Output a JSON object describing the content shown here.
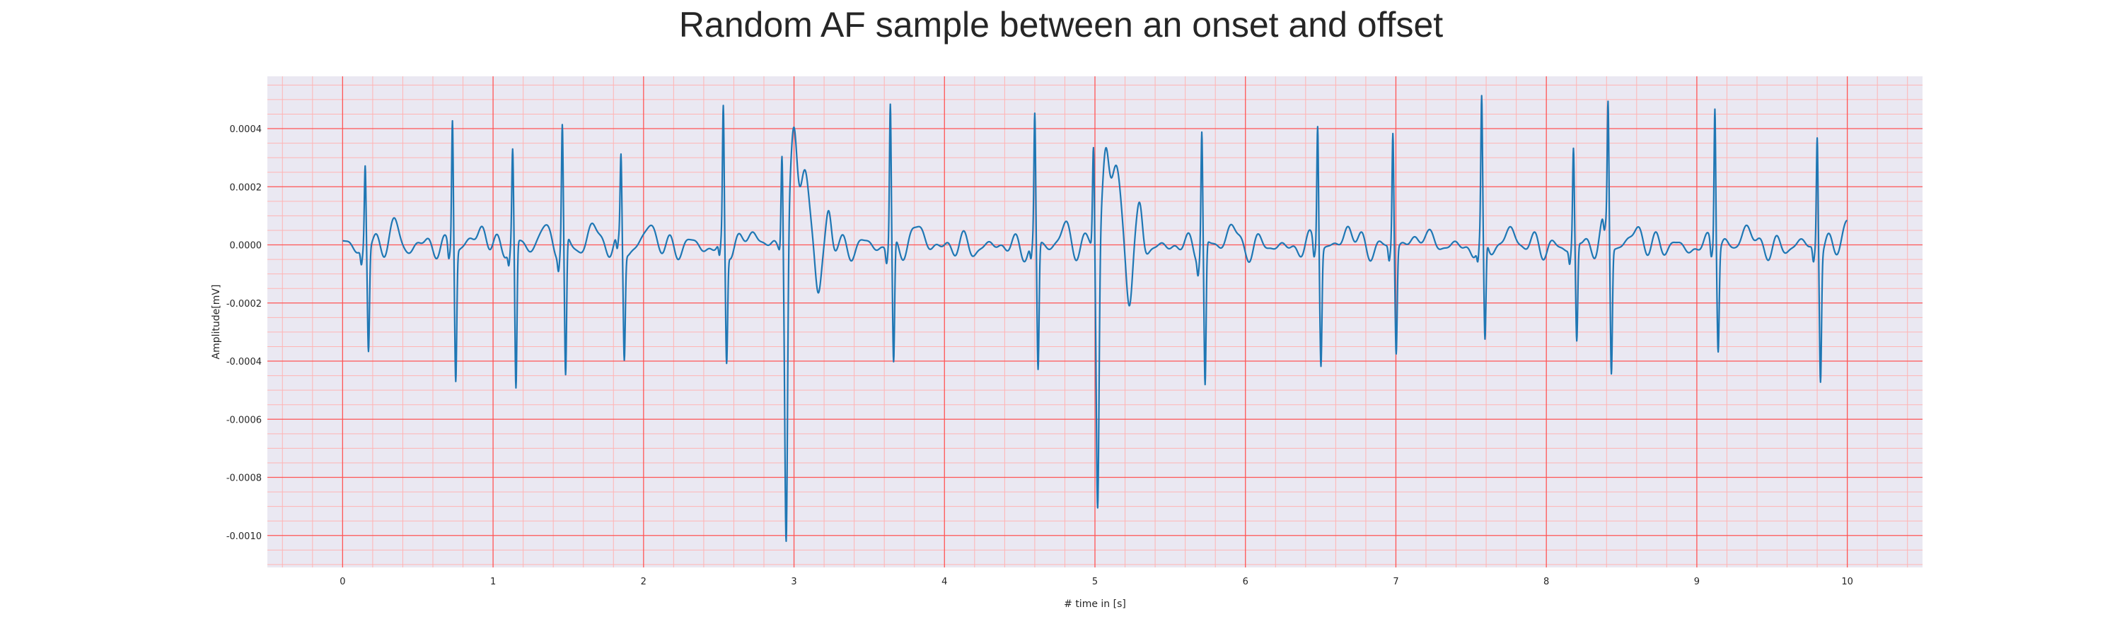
{
  "chart_data": {
    "type": "line",
    "title": "Random AF sample between an onset and offset",
    "xlabel": "# time in [s]",
    "ylabel": "Amplitude[mV]",
    "xlim": [
      -0.5,
      10.5
    ],
    "ylim": [
      -0.00111,
      0.00058
    ],
    "x_ticks": [
      "0",
      "1",
      "2",
      "3",
      "4",
      "5",
      "6",
      "7",
      "8",
      "9",
      "10"
    ],
    "y_ticks": [
      "0.0004",
      "0.0002",
      "0.0000",
      "-0.0002",
      "-0.0004",
      "-0.0006",
      "-0.0008",
      "-0.0010"
    ],
    "grid": true,
    "colors": {
      "background": "#eae8f2",
      "major_grid": "#ff5555",
      "minor_grid": "#ffb4b4",
      "line": "#1f77b4"
    },
    "series": [
      {
        "r_peaks_s": [
          0.15,
          0.73,
          1.13,
          1.46,
          1.85,
          2.53,
          3.64,
          4.6,
          5.71,
          6.48,
          6.98,
          7.57,
          8.18,
          8.41,
          9.12,
          9.8
        ],
        "r_amplitudes_mv": [
          0.00029,
          0.00046,
          0.00032,
          0.00041,
          0.0003,
          0.00046,
          0.00049,
          0.00044,
          0.00041,
          0.00044,
          0.0004,
          0.00047,
          0.00033,
          0.00045,
          0.00051,
          0.0004
        ],
        "s_amplitudes_mv": [
          -0.00033,
          -0.00042,
          -0.00049,
          -0.00046,
          -0.00035,
          -0.00037,
          -0.0004,
          -0.00042,
          -0.00047,
          -0.00037,
          -0.00034,
          -0.00034,
          -0.00032,
          -0.00042,
          -0.00031,
          -0.00041
        ],
        "ectopic_beats": [
          {
            "peak_s": 2.92,
            "r_mv": 0.00035,
            "s_mv": -0.00104,
            "hump_mv": 0.00037
          },
          {
            "peak_s": 4.99,
            "r_mv": 0.00035,
            "s_mv": -0.00091,
            "hump_mv": 0.00032
          }
        ],
        "baseline_fluctuation_mv": [
          -5e-05,
          9e-05
        ]
      }
    ]
  }
}
